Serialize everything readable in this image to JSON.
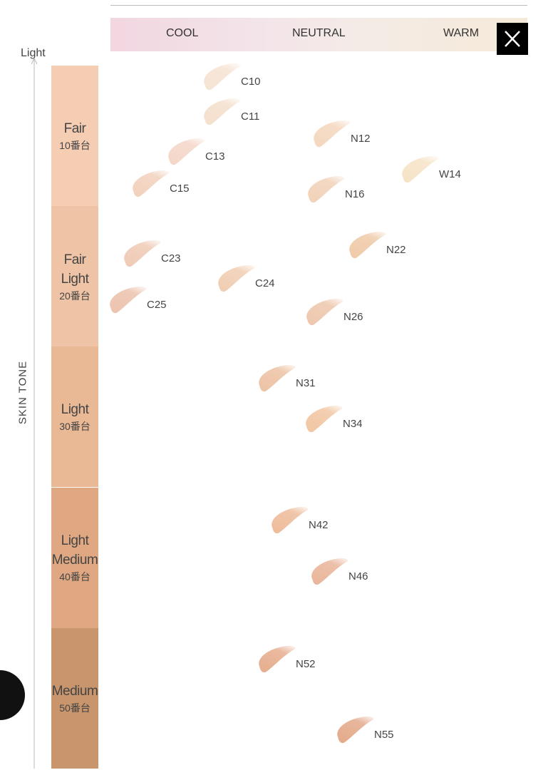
{
  "header": {
    "columns": [
      "COOL",
      "NEUTRAL",
      "WARM"
    ]
  },
  "axis": {
    "top_label": "Light",
    "title": "SKIN TONE"
  },
  "bands": [
    {
      "name": "Fair",
      "range": "10番台",
      "color": "#f4cdb3"
    },
    {
      "name": "Fair Light",
      "range": "20番台",
      "color": "#efc3a5"
    },
    {
      "name": "Light",
      "range": "30番台",
      "color": "#e9b996"
    },
    {
      "name": "Light Medium",
      "range": "40番台",
      "color": "#dfa882"
    },
    {
      "name": "Medium",
      "range": "50番台",
      "color": "#c8956d"
    }
  ],
  "swatches": [
    {
      "label": "C10",
      "color": "#f6e3d2"
    },
    {
      "label": "C11",
      "color": "#f5dfcc"
    },
    {
      "label": "C13",
      "color": "#f4d6c8"
    },
    {
      "label": "C15",
      "color": "#f2d1bd"
    },
    {
      "label": "N12",
      "color": "#f4d7bf"
    },
    {
      "label": "W14",
      "color": "#f6e3c6"
    },
    {
      "label": "N16",
      "color": "#f1d2b8"
    },
    {
      "label": "C23",
      "color": "#efcab6"
    },
    {
      "label": "N22",
      "color": "#efcaa8"
    },
    {
      "label": "C24",
      "color": "#f0cdb2"
    },
    {
      "label": "C25",
      "color": "#ecc2ad"
    },
    {
      "label": "N26",
      "color": "#eec7ad"
    },
    {
      "label": "N31",
      "color": "#edc2a4"
    },
    {
      "label": "N34",
      "color": "#f1c6a2"
    },
    {
      "label": "N42",
      "color": "#eebb9a"
    },
    {
      "label": "N46",
      "color": "#e9b59a"
    },
    {
      "label": "N52",
      "color": "#e6ad8e"
    },
    {
      "label": "N55",
      "color": "#e4a98a"
    }
  ]
}
